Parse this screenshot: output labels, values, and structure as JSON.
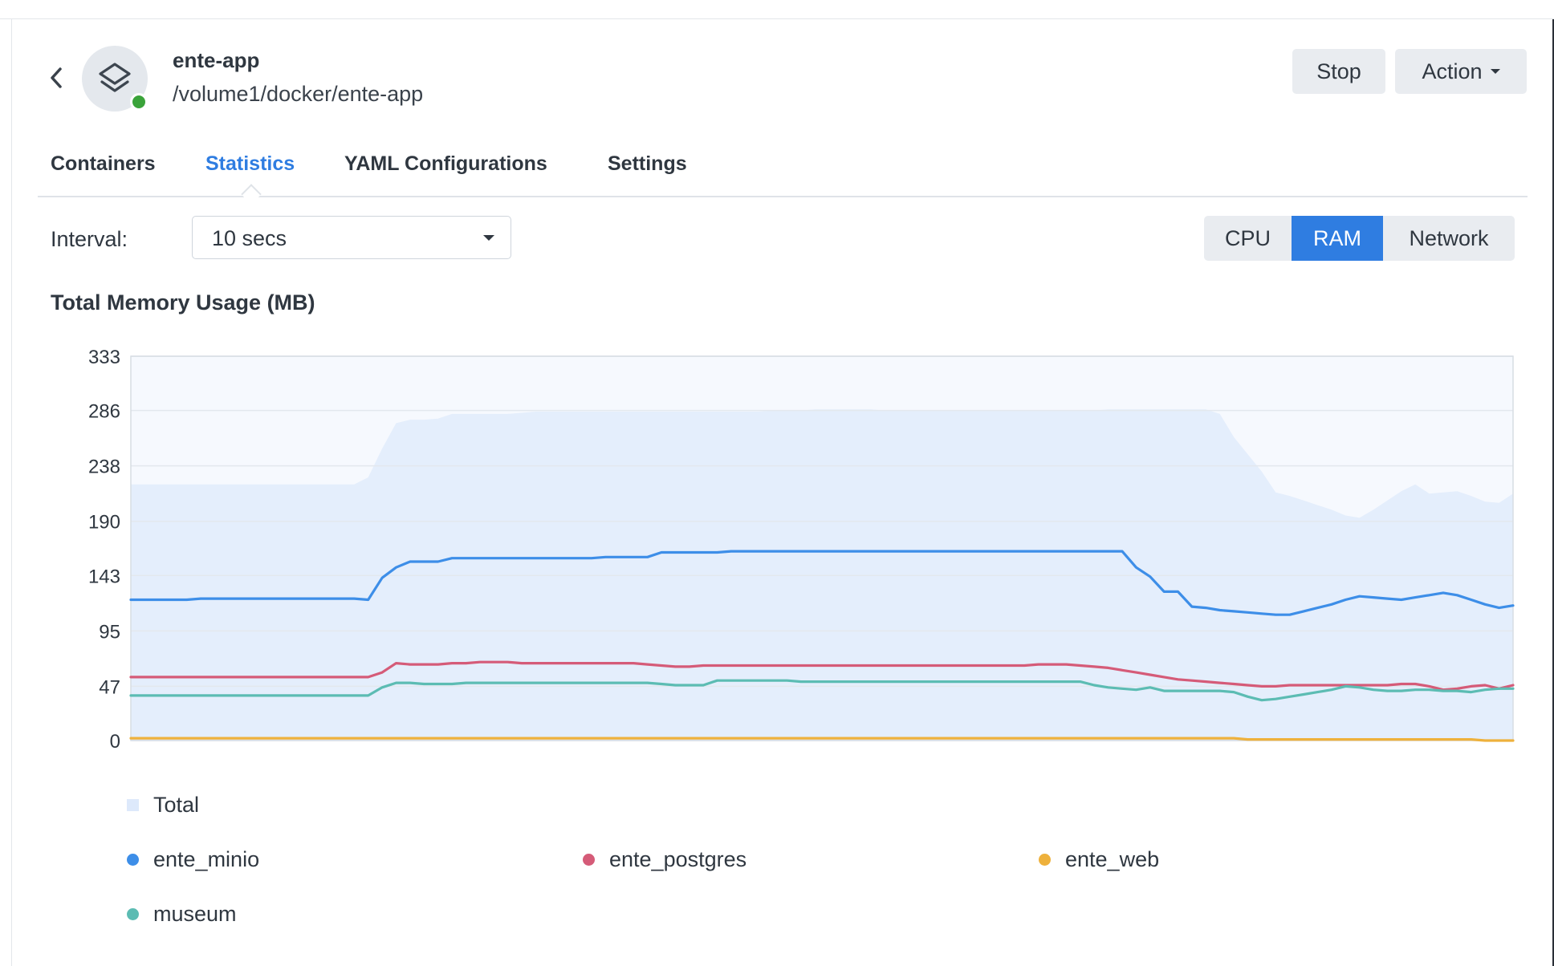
{
  "header": {
    "app_name": "ente-app",
    "app_path": "/volume1/docker/ente-app",
    "status_color": "#3aa33a",
    "stop_label": "Stop",
    "action_label": "Action"
  },
  "tabs": [
    {
      "label": "Containers",
      "active": false
    },
    {
      "label": "Statistics",
      "active": true
    },
    {
      "label": "YAML Configurations",
      "active": false
    },
    {
      "label": "Settings",
      "active": false
    }
  ],
  "toolbar": {
    "interval_label": "Interval:",
    "interval_value": "10 secs",
    "metric_options": [
      {
        "label": "CPU",
        "active": false
      },
      {
        "label": "RAM",
        "active": true
      },
      {
        "label": "Network",
        "active": false
      }
    ]
  },
  "chart_data": {
    "type": "line",
    "title": "Total Memory Usage (MB)",
    "ylim": [
      0,
      333
    ],
    "y_ticks": [
      "333",
      "286",
      "238",
      "190",
      "143",
      "95",
      "47",
      "0"
    ],
    "y_tick_values": [
      333,
      286,
      238,
      190,
      143,
      95,
      47,
      0
    ],
    "grid": true,
    "x": [
      0,
      1,
      2,
      3,
      4,
      5,
      6,
      7,
      8,
      9,
      10,
      11,
      12,
      13,
      14,
      15,
      16,
      17,
      18,
      19,
      20,
      21,
      22,
      23,
      24,
      25,
      26,
      27,
      28,
      29,
      30,
      31,
      32,
      33,
      34,
      35,
      36,
      37,
      38,
      39,
      40,
      41,
      42,
      43,
      44,
      45,
      46,
      47,
      48,
      49,
      50,
      51,
      52,
      53,
      54,
      55,
      56,
      57,
      58,
      59,
      60,
      61,
      62,
      63,
      64,
      65,
      66,
      67,
      68,
      69,
      70,
      71,
      72,
      73,
      74,
      75,
      76,
      77,
      78,
      79,
      80,
      81,
      82,
      83,
      84,
      85,
      86,
      87,
      88,
      89,
      90,
      91,
      92,
      93,
      94,
      95,
      96,
      97,
      98,
      99
    ],
    "total": {
      "name": "Total",
      "color": "#dde9fb",
      "values": [
        222,
        222,
        222,
        222,
        222,
        222,
        222,
        222,
        222,
        222,
        222,
        222,
        222,
        222,
        222,
        222,
        222,
        228,
        253,
        275,
        278,
        278,
        279,
        283,
        283,
        283,
        283,
        283,
        284,
        285,
        285,
        285,
        285,
        285,
        285,
        285,
        285,
        285,
        285,
        285,
        285,
        285,
        285,
        285,
        285,
        285,
        286,
        286,
        286,
        287,
        287,
        287,
        287,
        287,
        286,
        286,
        286,
        286,
        286,
        286,
        286,
        286,
        286,
        286,
        286,
        286,
        286,
        286,
        286,
        286,
        287,
        287,
        287,
        287,
        287,
        287,
        287,
        287,
        283,
        263,
        248,
        233,
        215,
        212,
        208,
        204,
        200,
        195,
        193,
        200,
        208,
        216,
        222,
        214,
        215,
        216,
        212,
        207,
        206,
        214
      ]
    },
    "series": [
      {
        "name": "ente_minio",
        "color": "#3d8ee8",
        "values": [
          122,
          122,
          122,
          122,
          122,
          123,
          123,
          123,
          123,
          123,
          123,
          123,
          123,
          123,
          123,
          123,
          123,
          122,
          141,
          150,
          155,
          155,
          155,
          158,
          158,
          158,
          158,
          158,
          158,
          158,
          158,
          158,
          158,
          158,
          159,
          159,
          159,
          159,
          163,
          163,
          163,
          163,
          163,
          164,
          164,
          164,
          164,
          164,
          164,
          164,
          164,
          164,
          164,
          164,
          164,
          164,
          164,
          164,
          164,
          164,
          164,
          164,
          164,
          164,
          164,
          164,
          164,
          164,
          164,
          164,
          164,
          164,
          150,
          142,
          129,
          129,
          116,
          115,
          113,
          112,
          111,
          110,
          109,
          109,
          112,
          115,
          118,
          122,
          125,
          124,
          123,
          122,
          124,
          126,
          128,
          126,
          122,
          118,
          115,
          117
        ]
      },
      {
        "name": "ente_postgres",
        "color": "#d55b78",
        "values": [
          55,
          55,
          55,
          55,
          55,
          55,
          55,
          55,
          55,
          55,
          55,
          55,
          55,
          55,
          55,
          55,
          55,
          55,
          59,
          67,
          66,
          66,
          66,
          67,
          67,
          68,
          68,
          68,
          67,
          67,
          67,
          67,
          67,
          67,
          67,
          67,
          67,
          66,
          65,
          64,
          64,
          65,
          65,
          65,
          65,
          65,
          65,
          65,
          65,
          65,
          65,
          65,
          65,
          65,
          65,
          65,
          65,
          65,
          65,
          65,
          65,
          65,
          65,
          65,
          65,
          66,
          66,
          66,
          65,
          64,
          63,
          61,
          59,
          57,
          55,
          53,
          52,
          51,
          50,
          49,
          48,
          47,
          47,
          48,
          48,
          48,
          48,
          48,
          48,
          48,
          48,
          49,
          49,
          47,
          44,
          45,
          47,
          48,
          45,
          48
        ]
      },
      {
        "name": "ente_web",
        "color": "#eeb13c",
        "values": [
          2,
          2,
          2,
          2,
          2,
          2,
          2,
          2,
          2,
          2,
          2,
          2,
          2,
          2,
          2,
          2,
          2,
          2,
          2,
          2,
          2,
          2,
          2,
          2,
          2,
          2,
          2,
          2,
          2,
          2,
          2,
          2,
          2,
          2,
          2,
          2,
          2,
          2,
          2,
          2,
          2,
          2,
          2,
          2,
          2,
          2,
          2,
          2,
          2,
          2,
          2,
          2,
          2,
          2,
          2,
          2,
          2,
          2,
          2,
          2,
          2,
          2,
          2,
          2,
          2,
          2,
          2,
          2,
          2,
          2,
          2,
          2,
          2,
          2,
          2,
          2,
          2,
          2,
          2,
          2,
          1,
          1,
          1,
          1,
          1,
          1,
          1,
          1,
          1,
          1,
          1,
          1,
          1,
          1,
          1,
          1,
          1,
          0,
          0,
          0
        ]
      },
      {
        "name": "museum",
        "color": "#5cbcb3",
        "values": [
          39,
          39,
          39,
          39,
          39,
          39,
          39,
          39,
          39,
          39,
          39,
          39,
          39,
          39,
          39,
          39,
          39,
          39,
          46,
          50,
          50,
          49,
          49,
          49,
          50,
          50,
          50,
          50,
          50,
          50,
          50,
          50,
          50,
          50,
          50,
          50,
          50,
          50,
          49,
          48,
          48,
          48,
          52,
          52,
          52,
          52,
          52,
          52,
          51,
          51,
          51,
          51,
          51,
          51,
          51,
          51,
          51,
          51,
          51,
          51,
          51,
          51,
          51,
          51,
          51,
          51,
          51,
          51,
          51,
          48,
          46,
          45,
          44,
          46,
          43,
          43,
          43,
          43,
          43,
          42,
          38,
          35,
          36,
          38,
          40,
          42,
          44,
          47,
          46,
          44,
          43,
          43,
          44,
          44,
          43,
          43,
          42,
          44,
          45,
          45
        ]
      }
    ],
    "legend": [
      "Total",
      "ente_minio",
      "ente_postgres",
      "ente_web",
      "museum"
    ],
    "legend_placement": "bottom"
  }
}
